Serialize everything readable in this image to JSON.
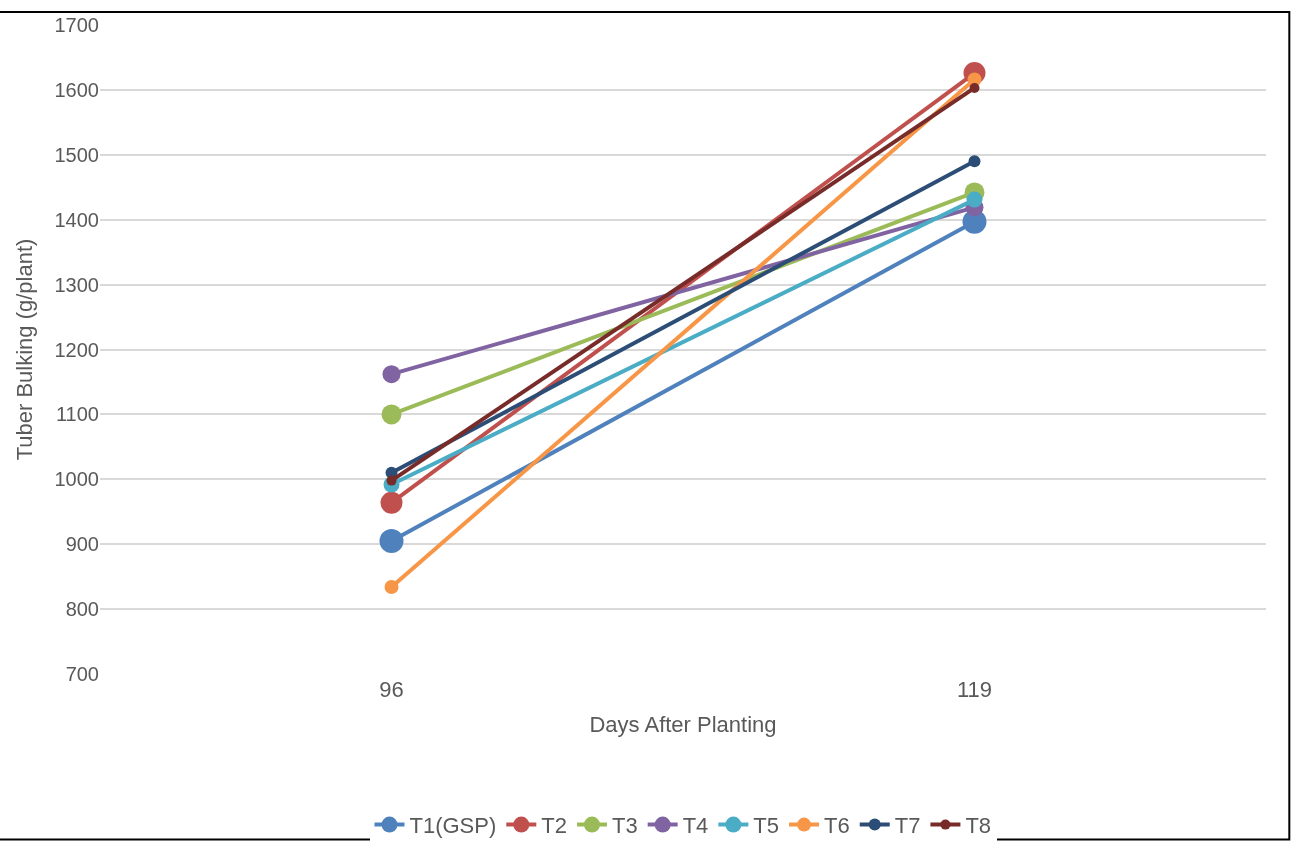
{
  "chart_data": {
    "type": "line",
    "xlabel": "Days After Planting",
    "ylabel": "Tuber Bulking (g/plant)",
    "categories": [
      "96",
      "119"
    ],
    "series": [
      {
        "name": "T1(GSP)",
        "color": "#4f81bd",
        "values": [
          905,
          1397
        ]
      },
      {
        "name": "T2",
        "color": "#c0504d",
        "values": [
          964,
          1626
        ]
      },
      {
        "name": "T3",
        "color": "#9bbb59",
        "values": [
          1100,
          1442
        ]
      },
      {
        "name": "T4",
        "color": "#8064a2",
        "values": [
          1162,
          1419
        ]
      },
      {
        "name": "T5",
        "color": "#4bacc6",
        "values": [
          992,
          1431
        ]
      },
      {
        "name": "T6",
        "color": "#f79646",
        "values": [
          834,
          1616
        ]
      },
      {
        "name": "T7",
        "color": "#2c4d75",
        "values": [
          1010,
          1490
        ]
      },
      {
        "name": "T8",
        "color": "#772c2a",
        "values": [
          998,
          1603
        ]
      }
    ],
    "ylim": [
      700,
      1700
    ],
    "yticks": [
      700,
      800,
      900,
      1000,
      1100,
      1200,
      1300,
      1400,
      1500,
      1600,
      1700
    ],
    "grid": "y",
    "legend": "bottom",
    "marker": "circle",
    "line_style": "solid"
  }
}
